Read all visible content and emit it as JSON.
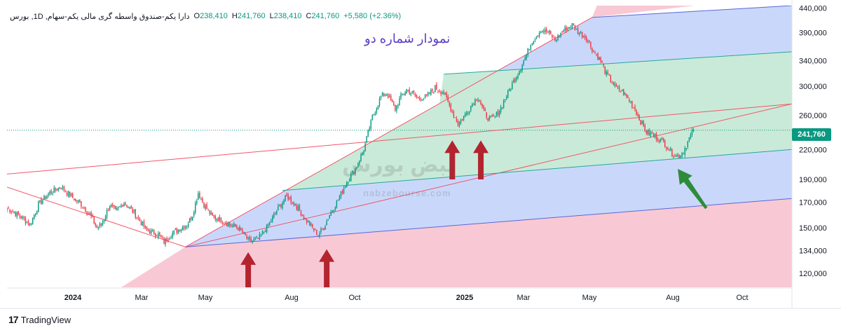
{
  "legend": {
    "symbol": "دارا یکم-صندوق واسطه گری مالی یکم-سهام, 1D, بورس",
    "o_label": "O",
    "o_value": "238,410",
    "h_label": "H",
    "h_value": "241,760",
    "l_label": "L",
    "l_value": "238,410",
    "c_label": "C",
    "c_value": "241,760",
    "change": "+5,580 (+2.36%)"
  },
  "overlay_title": "نمودار شماره دو",
  "watermark": {
    "text": "نبض بورس",
    "url": "nabzebourse.com"
  },
  "footer": {
    "logo_mark": "17",
    "brand": "TradingView"
  },
  "colors": {
    "up": "#089981",
    "down": "#f23645",
    "pink_zone": "#f8c9d4",
    "blue_zone": "#c9d8fa",
    "green_zone": "#c9ead8",
    "red_line": "#f0576a",
    "blue_line": "#5b67d8",
    "teal_line": "#27a79a",
    "arrow_red": "#b3242f",
    "arrow_green": "#2e8b3a",
    "title_purple": "#5b3cc4"
  },
  "chart_data": {
    "type": "candlestick",
    "x_axis": {
      "labels": [
        "2024",
        "Mar",
        "May",
        "Aug",
        "Oct",
        "2025",
        "Mar",
        "May",
        "Aug",
        "Oct"
      ],
      "bold_labels": [
        "2024",
        "2025"
      ]
    },
    "y_axis": {
      "scale": "log",
      "range": [
        112000,
        445000
      ],
      "labels": [
        "440,000",
        "390,000",
        "340,000",
        "300,000",
        "260,000",
        "220,000",
        "190,000",
        "170,000",
        "150,000",
        "134,000",
        "120,000"
      ]
    },
    "last_price": "241,760",
    "price_series": {
      "anchors": [
        [
          0,
          165000
        ],
        [
          10,
          158000
        ],
        [
          16,
          152000
        ],
        [
          22,
          168000
        ],
        [
          30,
          178000
        ],
        [
          38,
          183000
        ],
        [
          44,
          176000
        ],
        [
          52,
          168000
        ],
        [
          58,
          160000
        ],
        [
          63,
          150000
        ],
        [
          66,
          152000
        ],
        [
          72,
          168000
        ],
        [
          76,
          162000
        ],
        [
          82,
          170000
        ],
        [
          90,
          160000
        ],
        [
          98,
          148000
        ],
        [
          106,
          145000
        ],
        [
          110,
          140000
        ],
        [
          116,
          146000
        ],
        [
          122,
          150000
        ],
        [
          126,
          152000
        ],
        [
          130,
          160000
        ],
        [
          134,
          178000
        ],
        [
          138,
          168000
        ],
        [
          144,
          158000
        ],
        [
          150,
          156000
        ],
        [
          156,
          152000
        ],
        [
          162,
          150000
        ],
        [
          166,
          145000
        ],
        [
          170,
          140000
        ],
        [
          176,
          142000
        ],
        [
          182,
          150000
        ],
        [
          190,
          165000
        ],
        [
          196,
          175000
        ],
        [
          202,
          168000
        ],
        [
          208,
          158000
        ],
        [
          214,
          150000
        ],
        [
          218,
          145000
        ],
        [
          222,
          150000
        ],
        [
          226,
          160000
        ],
        [
          232,
          172000
        ],
        [
          238,
          188000
        ],
        [
          244,
          200000
        ],
        [
          250,
          220000
        ],
        [
          256,
          258000
        ],
        [
          262,
          285000
        ],
        [
          266,
          290000
        ],
        [
          272,
          268000
        ],
        [
          276,
          285000
        ],
        [
          280,
          295000
        ],
        [
          284,
          290000
        ],
        [
          288,
          282000
        ],
        [
          294,
          285000
        ],
        [
          300,
          298000
        ],
        [
          306,
          290000
        ],
        [
          312,
          265000
        ],
        [
          316,
          250000
        ],
        [
          320,
          258000
        ],
        [
          326,
          275000
        ],
        [
          330,
          285000
        ],
        [
          334,
          265000
        ],
        [
          338,
          255000
        ],
        [
          342,
          258000
        ],
        [
          346,
          270000
        ],
        [
          352,
          295000
        ],
        [
          358,
          320000
        ],
        [
          364,
          350000
        ],
        [
          368,
          375000
        ],
        [
          374,
          395000
        ],
        [
          380,
          390000
        ],
        [
          384,
          375000
        ],
        [
          390,
          395000
        ],
        [
          396,
          405000
        ],
        [
          400,
          392000
        ],
        [
          406,
          380000
        ],
        [
          410,
          360000
        ],
        [
          416,
          340000
        ],
        [
          420,
          318000
        ],
        [
          426,
          300000
        ],
        [
          432,
          290000
        ],
        [
          436,
          280000
        ],
        [
          440,
          268000
        ],
        [
          444,
          252000
        ],
        [
          448,
          240000
        ],
        [
          454,
          235000
        ],
        [
          460,
          228000
        ],
        [
          466,
          216000
        ],
        [
          470,
          212000
        ],
        [
          474,
          218000
        ],
        [
          478,
          232000
        ],
        [
          481,
          241760
        ]
      ]
    },
    "drawings": [
      {
        "name": "pitchfork-median-line",
        "points": [
          [
            125,
            136500
          ],
          [
            550,
            275000
          ]
        ]
      },
      {
        "name": "pitchfork-upper-handle",
        "points": [
          [
            125,
            136500
          ],
          [
            410,
            420000
          ]
        ]
      },
      {
        "name": "pitchfork-lower-handle",
        "points": [
          [
            125,
            136500
          ],
          [
            550,
            173000
          ]
        ]
      },
      {
        "name": "trend-line-descending",
        "points": [
          [
            0,
            183000
          ],
          [
            125,
            136500
          ]
        ]
      },
      {
        "name": "trend-line-long-red",
        "points": [
          [
            0,
            195000
          ],
          [
            550,
            275000
          ]
        ]
      },
      {
        "name": "channel-line-upper",
        "points": [
          [
            410,
            420000
          ],
          [
            550,
            445000
          ]
        ]
      },
      {
        "name": "channel-line-inner-teal-top",
        "points": [
          [
            306,
            318000
          ],
          [
            550,
            355000
          ]
        ]
      },
      {
        "name": "channel-line-inner-teal-bottom",
        "points": [
          [
            193,
            180000
          ],
          [
            550,
            220000
          ]
        ]
      }
    ],
    "annotations": [
      {
        "name": "red-arrow-aug-2024",
        "type": "up-arrow",
        "x": 169,
        "y_tip": 133000,
        "y_tail": 112000
      },
      {
        "name": "red-arrow-oct-2024",
        "type": "up-arrow",
        "x": 224,
        "y_tip": 135000,
        "y_tail": 112000
      },
      {
        "name": "red-arrow-feb-2025",
        "type": "up-arrow",
        "x": 312,
        "y_tip": 230000,
        "y_tail": 190000
      },
      {
        "name": "red-arrow-mar-2025",
        "type": "up-arrow",
        "x": 332,
        "y_tip": 230000,
        "y_tail": 190000
      },
      {
        "name": "green-arrow-aug-2025",
        "type": "diagonal-arrow",
        "x_tip": 470,
        "y_tip": 200000,
        "x_tail": 490,
        "y_tail": 165000
      }
    ]
  }
}
